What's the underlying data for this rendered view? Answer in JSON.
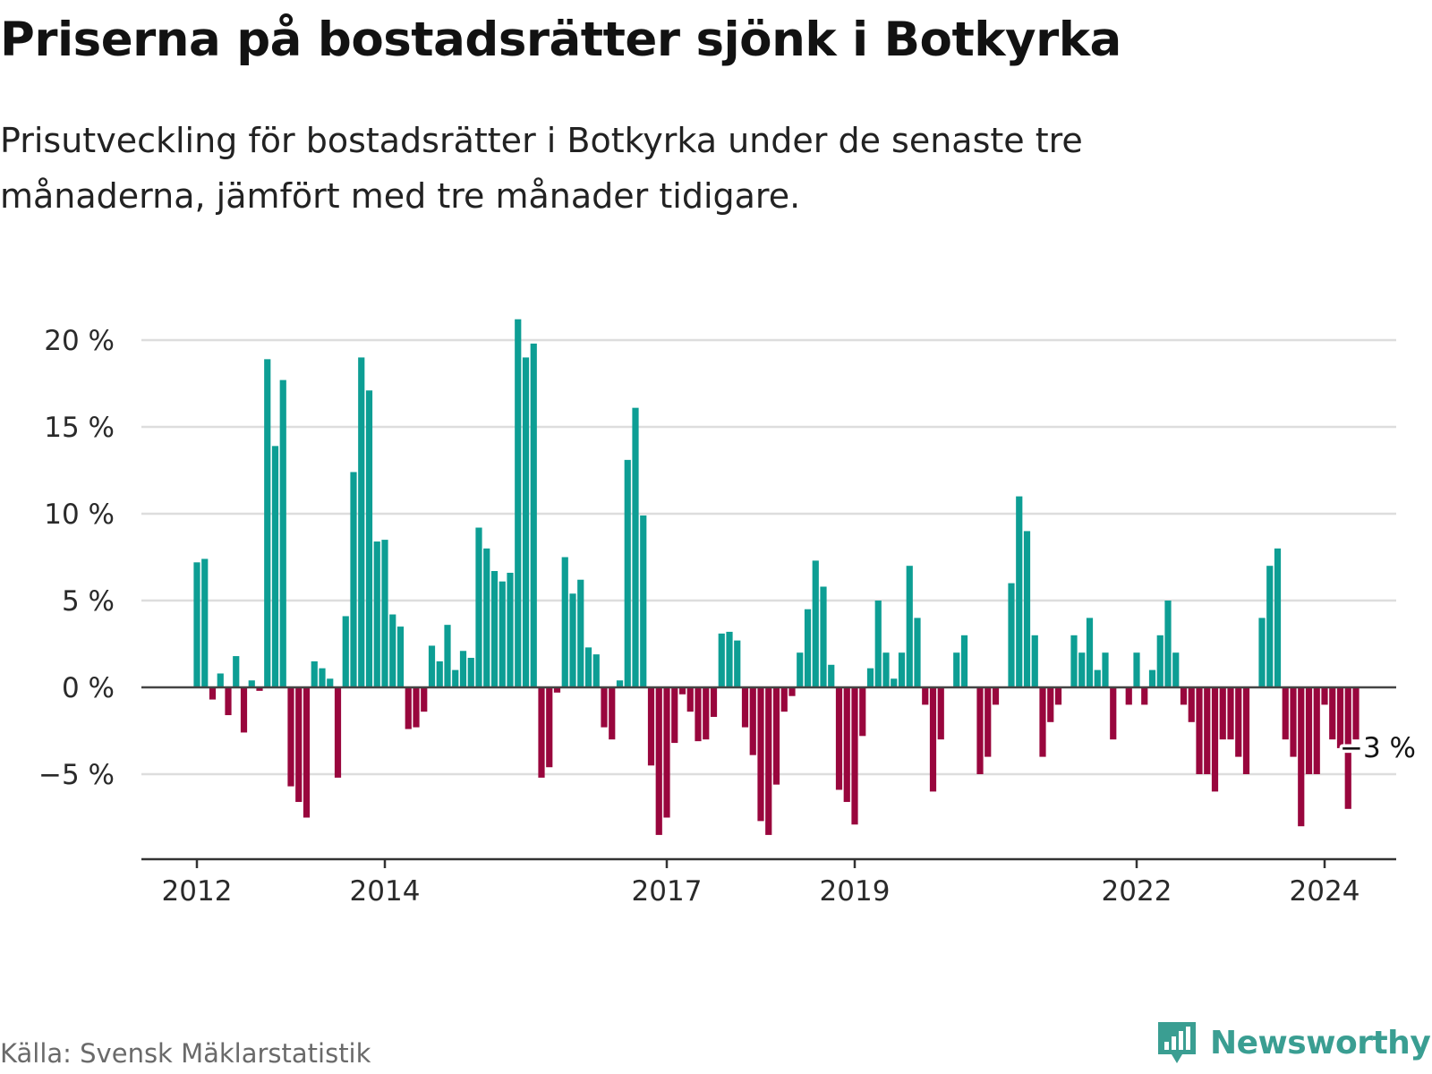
{
  "header": {
    "title": "Priserna på bostadsrätter sjönk i Botkyrka",
    "subtitle": "Prisutveckling för bostadsrätter i Botkyrka under de senaste tre månaderna, jämfört med tre månader tidigare."
  },
  "footer": {
    "source": "Källa: Svensk Mäklarstatistik",
    "brand": "Newsworthy"
  },
  "colors": {
    "positive": "#0d9e94",
    "negative": "#99063d",
    "grid": "#dddddd",
    "axis": "#333333",
    "brand": "#3a9e92"
  },
  "chart_data": {
    "type": "bar",
    "title": "Priserna på bostadsrätter sjönk i Botkyrka",
    "subtitle": "Prisutveckling för bostadsrätter i Botkyrka under de senaste tre månaderna, jämfört med tre månader tidigare.",
    "xlabel": "",
    "ylabel": "",
    "ylim": [
      -10,
      21
    ],
    "y_ticks": [
      -5,
      0,
      5,
      10,
      15,
      20
    ],
    "y_tick_labels": [
      "−5 %",
      "0 %",
      "5 %",
      "10 %",
      "15 %",
      "20 %"
    ],
    "x_ticks": [
      {
        "label": "2012",
        "month_index": 0
      },
      {
        "label": "2014",
        "month_index": 24
      },
      {
        "label": "2017",
        "month_index": 60
      },
      {
        "label": "2019",
        "month_index": 84
      },
      {
        "label": "2022",
        "month_index": 120
      },
      {
        "label": "2024",
        "month_index": 144
      }
    ],
    "series": [
      {
        "name": "Prisutveckling",
        "start": "2012-01",
        "frequency": "monthly",
        "values": [
          7.2,
          7.4,
          -0.7,
          0.8,
          -1.6,
          1.8,
          -2.6,
          0.4,
          -0.2,
          18.9,
          13.9,
          17.7,
          -5.7,
          -6.6,
          -7.5,
          1.5,
          1.1,
          0.5,
          -5.2,
          4.1,
          12.4,
          19.0,
          17.1,
          8.4,
          8.5,
          4.2,
          3.5,
          -2.4,
          -2.3,
          -1.4,
          2.4,
          1.5,
          3.6,
          1.0,
          2.1,
          1.7,
          9.2,
          8.0,
          6.7,
          6.1,
          6.6,
          21.2,
          19.0,
          19.8,
          -5.2,
          -4.6,
          -0.3,
          7.5,
          5.4,
          6.2,
          2.3,
          1.9,
          -2.3,
          -3.0,
          0.4,
          13.1,
          16.1,
          9.9,
          -4.5,
          -8.5,
          -7.5,
          -3.2,
          -0.4,
          -1.4,
          -3.1,
          -3.0,
          -1.7,
          3.1,
          3.2,
          2.7,
          -2.3,
          -3.9,
          -7.7,
          -8.5,
          -5.6,
          -1.4,
          -0.5,
          2.0,
          4.5,
          7.3,
          5.8,
          1.3,
          -5.9,
          -6.6,
          -7.9,
          -2.8,
          1.1,
          5.0,
          2.0,
          0.5,
          2.0,
          7.0,
          4.0,
          -1.0,
          -6.0,
          -3.0,
          0.0,
          2.0,
          3.0,
          0.0,
          -5.0,
          -4.0,
          -1.0,
          0.0,
          6.0,
          11.0,
          9.0,
          3.0,
          -4.0,
          -2.0,
          -1.0,
          0.0,
          3.0,
          2.0,
          4.0,
          1.0,
          2.0,
          -3.0,
          0.0,
          -1.0,
          2.0,
          -1.0,
          1.0,
          3.0,
          5.0,
          2.0,
          -1.0,
          -2.0,
          -5.0,
          -5.0,
          -6.0,
          -3.0,
          -3.0,
          -4.0,
          -5.0,
          0.0,
          4.0,
          7.0,
          8.0,
          -3.0,
          -4.0,
          -8.0,
          -5.0,
          -5.0,
          -1.0,
          -3.0,
          -3.5,
          -7.0,
          -3.0
        ]
      }
    ],
    "annotation": {
      "text": "−3 %",
      "month_index": 148,
      "value": -3
    }
  }
}
